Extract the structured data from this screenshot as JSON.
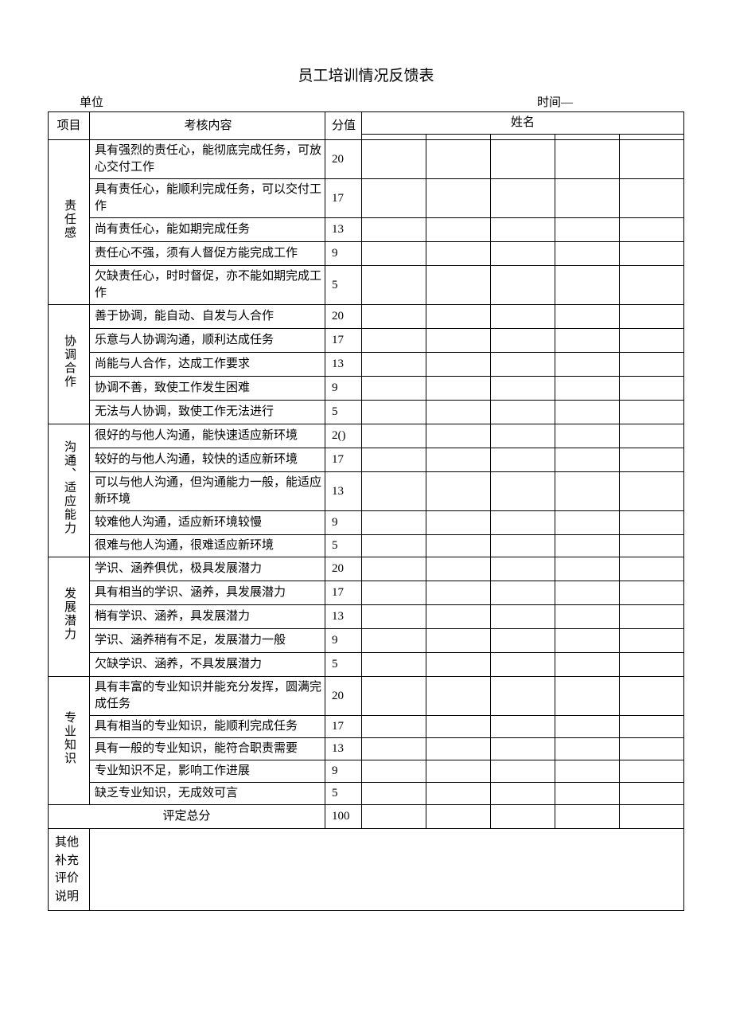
{
  "title": "员工培训情况反馈表",
  "header": {
    "unit_label": "单位",
    "time_label": "时间—"
  },
  "thead": {
    "project": "项目",
    "content": "考核内容",
    "score": "分值",
    "name": "姓名"
  },
  "sections": [
    {
      "label": "责任感",
      "rows": [
        {
          "text": "具有强烈的责任心，能彻底完成任务，可放心交付工作",
          "score": "20",
          "tall": true
        },
        {
          "text": "具有责任心，能顺利完成任务，可以交付工作",
          "score": "17",
          "tall": true
        },
        {
          "text": "尚有责任心，能如期完成任务",
          "score": "13"
        },
        {
          "text": "责任心不强，须有人督促方能完成工作",
          "score": "9"
        },
        {
          "text": "欠缺责任心，时时督促，亦不能如期完成工作",
          "score": "5",
          "tall": true
        }
      ]
    },
    {
      "label": "协调合作",
      "rows": [
        {
          "text": "善于协调，能自动、自发与人合作",
          "score": "20"
        },
        {
          "text": "乐意与人协调沟通，顺利达成任务",
          "score": "17"
        },
        {
          "text": "尚能与人合作，达成工作要求",
          "score": "13"
        },
        {
          "text": "协调不善，致使工作发生困难",
          "score": "9"
        },
        {
          "text": "无法与人协调，致使工作无法进行",
          "score": "5"
        }
      ]
    },
    {
      "label": "沟通、适应能力",
      "rows": [
        {
          "text": "很好的与他人沟通，能快速适应新环境",
          "score": "2()"
        },
        {
          "text": "较好的与他人沟通，较快的适应新环境",
          "score": "17"
        },
        {
          "text": "可以与他人沟通，但沟通能力一般，能适应新环境",
          "score": "13",
          "tall": true
        },
        {
          "text": "较难他人沟通，适应新环境较慢",
          "score": "9"
        },
        {
          "text": "很难与他人沟通，很难适应新环境",
          "score": "5",
          "short": true
        }
      ]
    },
    {
      "label": "发展潜力",
      "rows": [
        {
          "text": "学识、涵养俱优，极具发展潜力",
          "score": "20"
        },
        {
          "text": "具有相当的学识、涵养，具发展潜力",
          "score": "17"
        },
        {
          "text": "梢有学识、涵养，具发展潜力",
          "score": "13"
        },
        {
          "text": "学识、涵养稍有不足，发展潜力一般",
          "score": "9"
        },
        {
          "text": "欠缺学识、涵养，不具发展潜力",
          "score": "5"
        }
      ]
    },
    {
      "label": "专业知识",
      "rows": [
        {
          "text": "具有丰富的专业知识并能充分发挥，圆满完成任务",
          "score": "20",
          "tall": true
        },
        {
          "text": "具有相当的专业知识，能顺利完成任务",
          "score": "17",
          "short": true
        },
        {
          "text": "具有一般的专业知识，能符合职责需要",
          "score": "13",
          "short": true
        },
        {
          "text": "专业知识不足，影响工作进展",
          "score": "9",
          "short": true
        },
        {
          "text": "缺乏专业知识，无成效可言",
          "score": "5",
          "short": true
        }
      ]
    }
  ],
  "total": {
    "label": "评定总分",
    "score": "100"
  },
  "supplement": {
    "label": "其他补充评价说明"
  }
}
